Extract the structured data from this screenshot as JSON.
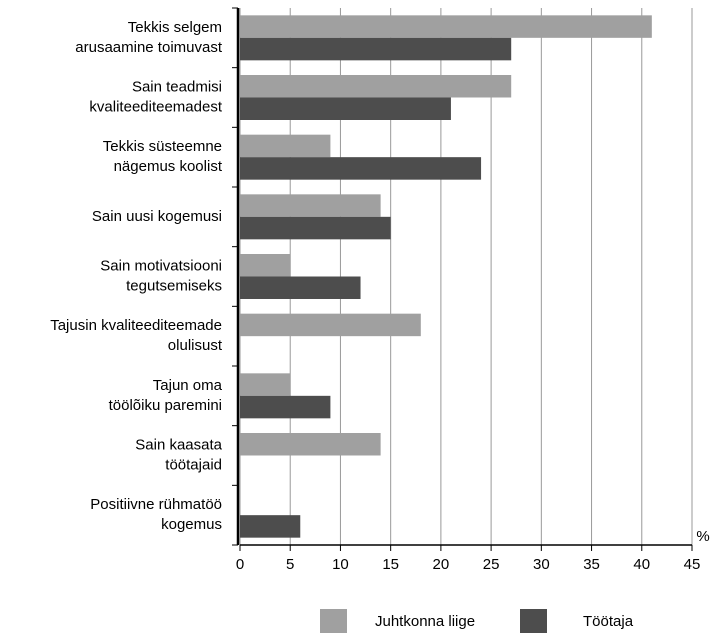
{
  "chart_data": {
    "type": "hbar",
    "categories": [
      [
        "Tekkis selgem",
        "arusaamine toimuvast"
      ],
      [
        "Sain teadmisi",
        "kvaliteediteemadest"
      ],
      [
        "Tekkis süsteemne",
        "nägemus koolist"
      ],
      [
        "Sain uusi kogemusi"
      ],
      [
        "Sain motivatsiooni",
        "tegutsemiseks"
      ],
      [
        "Tajusin kvaliteediteemade",
        "olulisust"
      ],
      [
        "Tajun oma",
        "töölõiku paremini"
      ],
      [
        "Sain kaasata",
        "töötajaid"
      ],
      [
        "Positiivne rühmatöö",
        "kogemus"
      ]
    ],
    "series": [
      {
        "name": "Juhtkonna liige",
        "color": "#a0a0a0",
        "values": [
          41,
          27,
          9,
          14,
          5,
          18,
          5,
          14,
          0
        ]
      },
      {
        "name": "Töötaja",
        "color": "#4d4d4d",
        "values": [
          27,
          21,
          24,
          15,
          12,
          0,
          9,
          0,
          6
        ]
      }
    ],
    "xlabel": "%",
    "xlim": [
      0,
      45
    ],
    "xticks": [
      0,
      5,
      10,
      15,
      20,
      25,
      30,
      35,
      40,
      45
    ],
    "grid": true,
    "legend": "bottom"
  }
}
